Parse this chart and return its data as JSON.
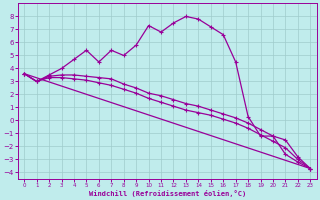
{
  "xlabel": "Windchill (Refroidissement éolien,°C)",
  "bg_color": "#c0ecec",
  "grid_color": "#a0cccc",
  "line_color": "#990099",
  "xlim": [
    -0.5,
    23.5
  ],
  "ylim": [
    -4.5,
    9.0
  ],
  "xticks": [
    0,
    1,
    2,
    3,
    4,
    5,
    6,
    7,
    8,
    9,
    10,
    11,
    12,
    13,
    14,
    15,
    16,
    17,
    18,
    19,
    20,
    21,
    22,
    23
  ],
  "yticks": [
    -4,
    -3,
    -2,
    -1,
    0,
    1,
    2,
    3,
    4,
    5,
    6,
    7,
    8
  ],
  "line1_x": [
    0,
    1,
    2,
    3,
    4,
    5,
    6,
    7,
    8,
    9,
    10,
    11,
    12,
    13,
    14,
    15,
    16,
    17,
    18,
    19,
    20,
    21,
    22,
    23
  ],
  "line1_y": [
    3.6,
    3.0,
    3.5,
    4.0,
    4.7,
    5.4,
    4.5,
    5.4,
    5.0,
    5.8,
    7.3,
    6.8,
    7.5,
    8.0,
    7.8,
    7.2,
    6.6,
    4.5,
    0.3,
    -1.2,
    -1.2,
    -2.6,
    -3.2,
    -3.7
  ],
  "line2_x": [
    0,
    1,
    2,
    3,
    4,
    5,
    6,
    7,
    8,
    9,
    10,
    11,
    12,
    13,
    14,
    15,
    16,
    17,
    18,
    19,
    20,
    21,
    22,
    23
  ],
  "line2_y": [
    3.6,
    3.0,
    3.4,
    3.5,
    3.5,
    3.4,
    3.3,
    3.2,
    2.8,
    2.5,
    2.1,
    1.9,
    1.6,
    1.3,
    1.1,
    0.8,
    0.5,
    0.2,
    -0.2,
    -0.7,
    -1.2,
    -1.5,
    -2.8,
    -3.7
  ],
  "line3_x": [
    0,
    1,
    2,
    3,
    4,
    5,
    6,
    7,
    8,
    9,
    10,
    11,
    12,
    13,
    14,
    15,
    16,
    17,
    18,
    19,
    20,
    21,
    22,
    23
  ],
  "line3_y": [
    3.6,
    3.0,
    3.3,
    3.3,
    3.2,
    3.1,
    2.9,
    2.7,
    2.4,
    2.1,
    1.7,
    1.4,
    1.1,
    0.8,
    0.6,
    0.4,
    0.1,
    -0.2,
    -0.6,
    -1.1,
    -1.6,
    -2.1,
    -3.0,
    -3.7
  ],
  "line4_x": [
    0,
    23
  ],
  "line4_y": [
    3.6,
    -3.7
  ]
}
